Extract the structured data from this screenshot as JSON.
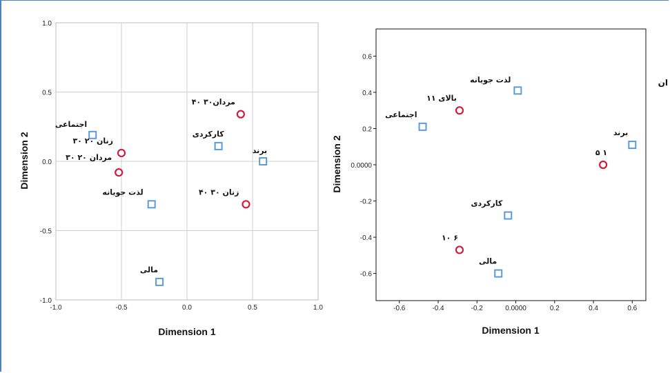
{
  "colors": {
    "category_square": "#5b9bd5",
    "group_circle": "#d01c3c",
    "grid": "#cfcfcf",
    "frame": "#4f81bd"
  },
  "chart_data": [
    {
      "type": "scatter",
      "xlabel": "Dimension 1",
      "ylabel": "Dimension 2",
      "xlim": [
        -1.0,
        1.0
      ],
      "ylim": [
        -1.0,
        1.0
      ],
      "xticks": [
        "-1.0",
        "-0.5",
        "0.0",
        "0.5",
        "1.0"
      ],
      "yticks": [
        "1.0",
        "0.5",
        "0.0",
        "-0.5",
        "-1.0"
      ],
      "grid": true,
      "points": [
        {
          "label": "اجتماعی",
          "x": -0.72,
          "y": 0.19,
          "marker": "square"
        },
        {
          "label": "کارکردی",
          "x": 0.24,
          "y": 0.11,
          "marker": "square"
        },
        {
          "label": "برند",
          "x": 0.58,
          "y": 0.0,
          "marker": "square"
        },
        {
          "label": "لذت جویانه",
          "x": -0.27,
          "y": -0.31,
          "marker": "square"
        },
        {
          "label": "مالی",
          "x": -0.21,
          "y": -0.87,
          "marker": "square"
        },
        {
          "label": "مردان۳۰ ۴۰",
          "x": 0.41,
          "y": 0.34,
          "marker": "circle"
        },
        {
          "label": "زنان ۲۰ ۳۰",
          "x": -0.5,
          "y": 0.06,
          "marker": "circle"
        },
        {
          "label": "مردان ۲۰ ۳۰",
          "x": -0.52,
          "y": -0.08,
          "marker": "circle"
        },
        {
          "label": "زنان ۳۰ ۴۰",
          "x": 0.45,
          "y": -0.31,
          "marker": "circle"
        }
      ]
    },
    {
      "type": "scatter",
      "xlabel": "Dimension 1",
      "ylabel": "Dimension 2",
      "xlim": [
        -0.72,
        0.67
      ],
      "ylim": [
        -0.75,
        0.75
      ],
      "xticks": [
        "-0.6",
        "-0.4",
        "-0.2",
        "0.0000",
        "0.2",
        "0.4",
        "0.6"
      ],
      "yticks": [
        "0.6",
        "0.4",
        "0.2",
        "0.0000",
        "-0.2",
        "-0.4",
        "-0.6"
      ],
      "grid": false,
      "points": [
        {
          "label": "لذت جویانه",
          "x": 0.01,
          "y": 0.41,
          "marker": "square"
        },
        {
          "label": "اجتماعی",
          "x": -0.48,
          "y": 0.21,
          "marker": "square"
        },
        {
          "label": "برند",
          "x": 0.6,
          "y": 0.11,
          "marker": "square"
        },
        {
          "label": "کارکردی",
          "x": -0.04,
          "y": -0.28,
          "marker": "square"
        },
        {
          "label": "مالی",
          "x": -0.09,
          "y": -0.6,
          "marker": "square"
        },
        {
          "label": "بالای ۱۱",
          "x": -0.29,
          "y": 0.3,
          "marker": "circle"
        },
        {
          "label": "۱ ۵",
          "x": 0.45,
          "y": 0.0,
          "marker": "circle"
        },
        {
          "label": "۶ ۱۰",
          "x": -0.29,
          "y": -0.47,
          "marker": "circle"
        }
      ],
      "annotations": [
        "ان"
      ]
    }
  ]
}
